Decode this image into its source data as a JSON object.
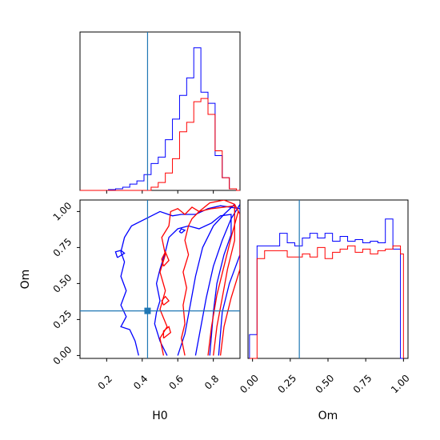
{
  "chart_data": [
    {
      "type": "histogram",
      "panel": "H0 marginal",
      "xlim": [
        0.05,
        0.95
      ],
      "ylim": [
        0,
        1.0
      ],
      "truth": 0.43,
      "series": [
        {
          "color": "#0000ff",
          "bin_edges": [
            0.05,
            0.07,
            0.09,
            0.11,
            0.13,
            0.15,
            0.17,
            0.19,
            0.21,
            0.23,
            0.25,
            0.27,
            0.29,
            0.31,
            0.33,
            0.35,
            0.37,
            0.39,
            0.41,
            0.43,
            0.45,
            0.47,
            0.49,
            0.51,
            0.53,
            0.55,
            0.57,
            0.59,
            0.61,
            0.63,
            0.65,
            0.67,
            0.69,
            0.71,
            0.73,
            0.75,
            0.77,
            0.79,
            0.81,
            0.83,
            0.85,
            0.87,
            0.89,
            0.91,
            0.93,
            0.95
          ],
          "values": [
            0,
            0,
            0,
            0,
            0,
            0,
            0,
            0,
            0.005,
            0.005,
            0.01,
            0.01,
            0.02,
            0.02,
            0.04,
            0.04,
            0.06,
            0.06,
            0.1,
            0.1,
            0.17,
            0.17,
            0.21,
            0.21,
            0.32,
            0.32,
            0.45,
            0.45,
            0.6,
            0.6,
            0.71,
            0.71,
            0.9,
            0.9,
            0.62,
            0.62,
            0.55,
            0.55,
            0.22,
            0.22,
            0.08,
            0.08,
            0.01,
            0.01,
            0
          ]
        },
        {
          "color": "#ff0000",
          "bin_edges": [
            0.05,
            0.07,
            0.09,
            0.11,
            0.13,
            0.15,
            0.17,
            0.19,
            0.21,
            0.23,
            0.25,
            0.27,
            0.29,
            0.31,
            0.33,
            0.35,
            0.37,
            0.39,
            0.41,
            0.43,
            0.45,
            0.47,
            0.49,
            0.51,
            0.53,
            0.55,
            0.57,
            0.59,
            0.61,
            0.63,
            0.65,
            0.67,
            0.69,
            0.71,
            0.73,
            0.75,
            0.77,
            0.79,
            0.81,
            0.83,
            0.85,
            0.87,
            0.89,
            0.91,
            0.93,
            0.95
          ],
          "values": [
            0,
            0,
            0,
            0,
            0,
            0,
            0,
            0,
            0,
            0,
            0,
            0,
            0,
            0,
            0,
            0,
            0,
            0,
            0,
            0,
            0.02,
            0.02,
            0.05,
            0.05,
            0.11,
            0.11,
            0.2,
            0.2,
            0.37,
            0.37,
            0.43,
            0.43,
            0.56,
            0.56,
            0.58,
            0.58,
            0.48,
            0.48,
            0.25,
            0.25,
            0.08,
            0.08,
            0.01,
            0.01,
            0
          ]
        }
      ]
    },
    {
      "type": "contour",
      "panel": "H0 vs Om",
      "xlabel": "H0",
      "ylabel": "Om",
      "xlim": [
        0.05,
        0.95
      ],
      "ylim": [
        -0.02,
        1.08
      ],
      "x_ticks": [
        "0.2",
        "0.4",
        "0.6",
        "0.8"
      ],
      "x_tick_values": [
        0.2,
        0.4,
        0.6,
        0.8
      ],
      "y_ticks": [
        "0.00",
        "0.25",
        "0.50",
        "0.75",
        "1.00"
      ],
      "y_tick_values": [
        0.0,
        0.25,
        0.5,
        0.75,
        1.0
      ],
      "truth": [
        0.43,
        0.31
      ],
      "series": [
        {
          "color": "#0000ff",
          "contours": [
            [
              [
                0.38,
                0.0
              ],
              [
                0.36,
                0.1
              ],
              [
                0.33,
                0.18
              ],
              [
                0.28,
                0.2
              ],
              [
                0.31,
                0.27
              ],
              [
                0.28,
                0.35
              ],
              [
                0.31,
                0.45
              ],
              [
                0.28,
                0.55
              ],
              [
                0.3,
                0.65
              ],
              [
                0.28,
                0.72
              ],
              [
                0.3,
                0.82
              ],
              [
                0.34,
                0.9
              ],
              [
                0.42,
                0.95
              ],
              [
                0.5,
                1.0
              ],
              [
                0.57,
                0.97
              ],
              [
                0.62,
                0.98
              ],
              [
                0.7,
                0.98
              ],
              [
                0.77,
                1.02
              ],
              [
                0.84,
                1.04
              ],
              [
                0.95,
                1.02
              ],
              [
                0.95,
                0.7
              ],
              [
                0.89,
                0.5
              ],
              [
                0.85,
                0.3
              ],
              [
                0.83,
                0.0
              ]
            ],
            [
              [
                0.54,
                0.0
              ],
              [
                0.5,
                0.1
              ],
              [
                0.47,
                0.22
              ],
              [
                0.48,
                0.3
              ],
              [
                0.5,
                0.38
              ],
              [
                0.48,
                0.5
              ],
              [
                0.5,
                0.6
              ],
              [
                0.53,
                0.72
              ],
              [
                0.55,
                0.82
              ],
              [
                0.6,
                0.88
              ],
              [
                0.66,
                0.9
              ],
              [
                0.72,
                0.88
              ],
              [
                0.79,
                0.92
              ],
              [
                0.84,
                0.97
              ],
              [
                0.9,
                0.98
              ],
              [
                0.9,
                0.84
              ],
              [
                0.86,
                0.7
              ],
              [
                0.82,
                0.5
              ],
              [
                0.8,
                0.3
              ],
              [
                0.78,
                0.0
              ]
            ],
            [
              [
                0.6,
                0.0
              ],
              [
                0.64,
                0.15
              ],
              [
                0.67,
                0.35
              ],
              [
                0.7,
                0.55
              ],
              [
                0.74,
                0.75
              ],
              [
                0.8,
                0.9
              ],
              [
                0.86,
                0.98
              ],
              [
                0.92,
                1.05
              ]
            ],
            [
              [
                0.7,
                0.0
              ],
              [
                0.73,
                0.2
              ],
              [
                0.76,
                0.4
              ],
              [
                0.8,
                0.62
              ],
              [
                0.85,
                0.8
              ],
              [
                0.9,
                0.95
              ],
              [
                0.95,
                1.05
              ]
            ],
            [
              [
                0.26,
                0.68
              ],
              [
                0.3,
                0.71
              ],
              [
                0.28,
                0.73
              ],
              [
                0.25,
                0.72
              ],
              [
                0.26,
                0.68
              ]
            ],
            [
              [
                0.62,
                0.85
              ],
              [
                0.64,
                0.87
              ],
              [
                0.62,
                0.88
              ],
              [
                0.61,
                0.86
              ],
              [
                0.62,
                0.85
              ]
            ]
          ]
        },
        {
          "color": "#ff0000",
          "contours": [
            [
              [
                0.52,
                0.0
              ],
              [
                0.5,
                0.12
              ],
              [
                0.54,
                0.2
              ],
              [
                0.5,
                0.32
              ],
              [
                0.53,
                0.45
              ],
              [
                0.5,
                0.58
              ],
              [
                0.53,
                0.7
              ],
              [
                0.51,
                0.82
              ],
              [
                0.55,
                0.9
              ],
              [
                0.56,
                1.0
              ],
              [
                0.6,
                1.02
              ],
              [
                0.64,
                0.98
              ],
              [
                0.68,
                1.03
              ],
              [
                0.72,
                1.0
              ],
              [
                0.78,
                1.06
              ],
              [
                0.86,
                1.08
              ],
              [
                0.92,
                1.05
              ],
              [
                0.95,
                0.98
              ],
              [
                0.95,
                0.6
              ],
              [
                0.9,
                0.4
              ],
              [
                0.86,
                0.2
              ],
              [
                0.84,
                0.0
              ]
            ],
            [
              [
                0.64,
                0.0
              ],
              [
                0.62,
                0.12
              ],
              [
                0.64,
                0.22
              ],
              [
                0.63,
                0.35
              ],
              [
                0.65,
                0.47
              ],
              [
                0.63,
                0.58
              ],
              [
                0.66,
                0.7
              ],
              [
                0.64,
                0.8
              ],
              [
                0.66,
                0.9
              ],
              [
                0.68,
                0.95
              ],
              [
                0.72,
                1.0
              ],
              [
                0.79,
                1.02
              ],
              [
                0.86,
                1.03
              ],
              [
                0.92,
                1.04
              ],
              [
                0.92,
                0.8
              ],
              [
                0.88,
                0.6
              ],
              [
                0.85,
                0.4
              ],
              [
                0.82,
                0.2
              ],
              [
                0.8,
                0.0
              ]
            ],
            [
              [
                0.77,
                0.0
              ],
              [
                0.79,
                0.2
              ],
              [
                0.82,
                0.42
              ],
              [
                0.86,
                0.62
              ],
              [
                0.9,
                0.82
              ],
              [
                0.94,
                1.0
              ]
            ],
            [
              [
                0.52,
                0.62
              ],
              [
                0.55,
                0.66
              ],
              [
                0.53,
                0.72
              ],
              [
                0.51,
                0.67
              ],
              [
                0.52,
                0.62
              ]
            ],
            [
              [
                0.52,
                0.35
              ],
              [
                0.55,
                0.38
              ],
              [
                0.53,
                0.41
              ],
              [
                0.51,
                0.38
              ],
              [
                0.52,
                0.35
              ]
            ],
            [
              [
                0.52,
                0.12
              ],
              [
                0.56,
                0.16
              ],
              [
                0.55,
                0.2
              ],
              [
                0.52,
                0.17
              ],
              [
                0.52,
                0.12
              ]
            ]
          ]
        }
      ]
    },
    {
      "type": "histogram",
      "panel": "Om marginal",
      "xlabel": "Om",
      "xlim": [
        -0.03,
        1.03
      ],
      "ylim": [
        0,
        1.0
      ],
      "x_ticks": [
        "0.00",
        "0.25",
        "0.50",
        "0.75",
        "1.00"
      ],
      "x_tick_values": [
        0.0,
        0.25,
        0.5,
        0.75,
        1.0
      ],
      "truth": 0.31,
      "series": [
        {
          "color": "#0000ff",
          "bin_edges": [
            -0.02,
            0.03,
            0.08,
            0.13,
            0.18,
            0.23,
            0.28,
            0.33,
            0.38,
            0.43,
            0.48,
            0.53,
            0.58,
            0.63,
            0.68,
            0.73,
            0.78,
            0.83,
            0.88,
            0.93,
            0.98,
            1.0
          ],
          "values": [
            0.15,
            0.71,
            0.71,
            0.71,
            0.79,
            0.73,
            0.71,
            0.76,
            0.79,
            0.76,
            0.79,
            0.74,
            0.77,
            0.74,
            0.75,
            0.73,
            0.74,
            0.73,
            0.88,
            0.69,
            0.0
          ]
        },
        {
          "color": "#ff0000",
          "bin_edges": [
            -0.02,
            0.03,
            0.08,
            0.13,
            0.18,
            0.23,
            0.28,
            0.33,
            0.38,
            0.43,
            0.48,
            0.53,
            0.58,
            0.63,
            0.68,
            0.73,
            0.78,
            0.83,
            0.88,
            0.93,
            0.98,
            1.0
          ],
          "values": [
            0.0,
            0.63,
            0.68,
            0.68,
            0.68,
            0.64,
            0.64,
            0.66,
            0.64,
            0.7,
            0.63,
            0.67,
            0.69,
            0.71,
            0.67,
            0.69,
            0.66,
            0.68,
            0.69,
            0.71,
            0.66
          ]
        }
      ]
    }
  ],
  "truth_color": "#1f77b4"
}
